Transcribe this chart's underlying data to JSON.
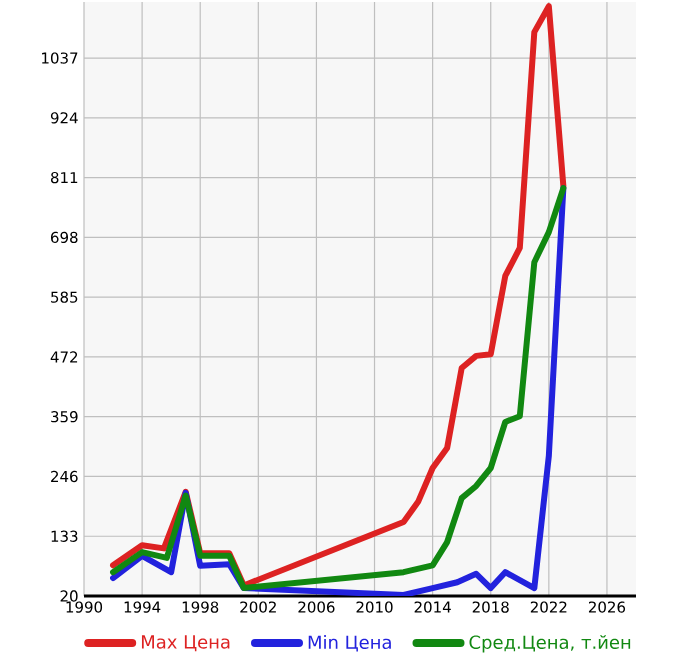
{
  "chart_data": {
    "type": "line",
    "xlim": [
      1990,
      2028
    ],
    "ylim": [
      20,
      1143
    ],
    "xticks": [
      1990,
      1994,
      1998,
      2002,
      2006,
      2010,
      2014,
      2018,
      2022,
      2026
    ],
    "yticks": [
      20,
      133,
      246,
      359,
      472,
      585,
      698,
      811,
      924,
      1037
    ],
    "grid": true,
    "legend": "bottom",
    "marker": "none",
    "line_style": "solid",
    "series": [
      {
        "name": "Max Цена",
        "color": "#dd2222",
        "x": [
          1992,
          1994,
          1995.5,
          1997,
          1998,
          2000,
          2001,
          2012,
          2013,
          2014,
          2015,
          2016,
          2017,
          2018,
          2019,
          2020,
          2021,
          2022,
          2023
        ],
        "values": [
          78,
          116,
          110,
          217,
          101,
          101,
          40,
          160,
          198,
          262,
          300,
          451,
          474,
          477,
          625,
          678,
          1086,
          1135,
          795
        ]
      },
      {
        "name": "Min Цена",
        "color": "#2222dd",
        "x": [
          1992,
          1994,
          1996,
          1997,
          1998,
          2000,
          2001,
          2012,
          2014,
          2015.7,
          2017,
          2018,
          2019,
          2021,
          2022,
          2023
        ],
        "values": [
          54,
          96,
          65,
          215,
          77,
          80,
          35,
          22,
          35,
          46,
          62,
          35,
          65,
          35,
          285,
          791
        ]
      },
      {
        "name": "Сред.Цена, т.йен",
        "color": "#118811",
        "x": [
          1992,
          1994,
          1995.7,
          1997,
          1998,
          2000,
          2001,
          2012,
          2014,
          2015,
          2016,
          2017,
          2018,
          2019,
          2020,
          2021,
          2022,
          2023
        ],
        "values": [
          65,
          103,
          92,
          210,
          96,
          96,
          35,
          65,
          78,
          122,
          205,
          228,
          262,
          349,
          360,
          651,
          708,
          791
        ]
      }
    ]
  }
}
